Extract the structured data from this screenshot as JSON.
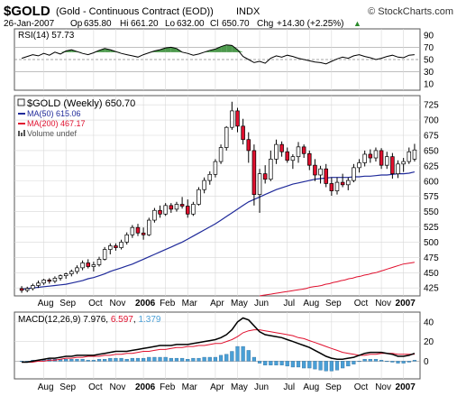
{
  "header": {
    "symbol": "$GOLD",
    "name": "(Gold - Continuous Contract (EOD))",
    "exchange": "INDX",
    "copyright": "© StockCharts.com",
    "date": "26-Jan-2007",
    "quote": {
      "op_label": "Op",
      "op": "635.80",
      "hi_label": "Hi",
      "hi": "661.20",
      "lo_label": "Lo",
      "lo": "632.00",
      "cl_label": "Cl",
      "cl": "650.70",
      "chg_label": "Chg",
      "chg": "+14.30 (+2.25%)"
    },
    "up_arrow": "▲"
  },
  "colors": {
    "up_candle": "#ffffff",
    "down_candle": "#e0102e",
    "candle_outline": "#000000",
    "ma50": "#1f2a9a",
    "ma200": "#e0102e",
    "macd_line": "#000000",
    "signal_line": "#e0102e",
    "histogram": "#4a9fd6",
    "rsi_fill": "#4d9a4d",
    "grid": "#d8d8d8",
    "panel_border": "#555555"
  },
  "chart_data": [
    {
      "type": "line",
      "panel": "rsi",
      "label": "RSI(14)",
      "label_value": "57.73",
      "y_ticks": [
        "90",
        "70",
        "50",
        "30",
        "10"
      ],
      "ylim": [
        0,
        100
      ],
      "overbought": 70,
      "oversold": 30,
      "values": [
        52,
        55,
        58,
        56,
        60,
        57,
        62,
        59,
        64,
        66,
        63,
        60,
        58,
        61,
        65,
        68,
        66,
        63,
        60,
        58,
        56,
        54,
        58,
        61,
        64,
        66,
        69,
        70,
        68,
        62,
        60,
        57,
        59,
        62,
        65,
        67,
        71,
        74,
        73,
        66,
        55,
        50,
        45,
        47,
        44,
        52,
        56,
        54,
        57,
        55,
        52,
        50,
        48,
        46,
        45,
        43,
        47,
        51,
        54,
        52,
        56,
        58,
        55,
        53,
        50,
        52,
        55,
        57,
        54,
        53,
        57,
        58
      ]
    },
    {
      "type": "candlestick",
      "panel": "price",
      "title": "$GOLD (Weekly) 650.70",
      "legend": [
        {
          "name": "MA(50) 615.06",
          "color": "#1f2a9a"
        },
        {
          "name": "MA(200) 467.17",
          "color": "#e0102e"
        },
        {
          "name": "Volume undef",
          "color": "#555555"
        }
      ],
      "x_tick_labels": [
        "Aug",
        "Sep",
        "Oct",
        "Nov",
        "2006",
        "Feb",
        "Mar",
        "Apr",
        "May",
        "Jun",
        "Jul",
        "Aug",
        "Sep",
        "Oct",
        "Nov",
        "2007"
      ],
      "y_ticks": [
        725,
        700,
        675,
        650,
        625,
        600,
        575,
        550,
        525,
        500,
        475,
        450,
        425
      ],
      "ylim": [
        412,
        740
      ],
      "ohlc": [
        [
          424,
          428,
          417,
          421
        ],
        [
          421,
          427,
          418,
          424
        ],
        [
          424,
          432,
          421,
          429
        ],
        [
          429,
          437,
          425,
          433
        ],
        [
          433,
          440,
          430,
          438
        ],
        [
          438,
          441,
          432,
          436
        ],
        [
          436,
          444,
          433,
          441
        ],
        [
          441,
          447,
          437,
          445
        ],
        [
          445,
          450,
          440,
          448
        ],
        [
          448,
          455,
          444,
          452
        ],
        [
          452,
          462,
          448,
          458
        ],
        [
          458,
          470,
          454,
          466
        ],
        [
          466,
          472,
          457,
          460
        ],
        [
          460,
          468,
          452,
          463
        ],
        [
          463,
          476,
          460,
          472
        ],
        [
          472,
          492,
          470,
          488
        ],
        [
          488,
          498,
          480,
          494
        ],
        [
          494,
          498,
          486,
          491
        ],
        [
          491,
          504,
          488,
          500
        ],
        [
          500,
          516,
          496,
          512
        ],
        [
          512,
          528,
          507,
          524
        ],
        [
          524,
          530,
          510,
          515
        ],
        [
          515,
          524,
          504,
          512
        ],
        [
          512,
          540,
          510,
          536
        ],
        [
          536,
          556,
          532,
          552
        ],
        [
          552,
          560,
          540,
          546
        ],
        [
          546,
          564,
          543,
          560
        ],
        [
          560,
          564,
          548,
          554
        ],
        [
          554,
          566,
          550,
          562
        ],
        [
          562,
          574,
          555,
          559
        ],
        [
          559,
          570,
          540,
          546
        ],
        [
          546,
          566,
          543,
          562
        ],
        [
          562,
          590,
          560,
          586
        ],
        [
          586,
          606,
          580,
          601
        ],
        [
          601,
          616,
          594,
          611
        ],
        [
          611,
          636,
          606,
          632
        ],
        [
          632,
          660,
          628,
          655
        ],
        [
          655,
          690,
          650,
          688
        ],
        [
          688,
          730,
          684,
          715
        ],
        [
          715,
          720,
          680,
          690
        ],
        [
          690,
          702,
          660,
          668
        ],
        [
          668,
          680,
          630,
          650
        ],
        [
          650,
          660,
          560,
          578
        ],
        [
          578,
          620,
          548,
          612
        ],
        [
          612,
          626,
          596,
          603
        ],
        [
          603,
          650,
          600,
          636
        ],
        [
          636,
          668,
          628,
          660
        ],
        [
          660,
          665,
          640,
          648
        ],
        [
          648,
          655,
          630,
          634
        ],
        [
          634,
          644,
          620,
          640
        ],
        [
          640,
          664,
          630,
          656
        ],
        [
          656,
          660,
          638,
          645
        ],
        [
          645,
          650,
          618,
          626
        ],
        [
          626,
          636,
          600,
          610
        ],
        [
          610,
          625,
          596,
          620
        ],
        [
          620,
          628,
          590,
          596
        ],
        [
          596,
          606,
          576,
          584
        ],
        [
          584,
          606,
          578,
          598
        ],
        [
          598,
          612,
          590,
          594
        ],
        [
          594,
          606,
          585,
          601
        ],
        [
          601,
          628,
          598,
          622
        ],
        [
          622,
          636,
          614,
          630
        ],
        [
          630,
          650,
          624,
          644
        ],
        [
          644,
          652,
          630,
          638
        ],
        [
          638,
          655,
          632,
          650
        ],
        [
          650,
          654,
          620,
          626
        ],
        [
          626,
          648,
          620,
          640
        ],
        [
          640,
          646,
          604,
          612
        ],
        [
          612,
          634,
          605,
          628
        ],
        [
          628,
          638,
          615,
          632
        ],
        [
          632,
          655,
          628,
          648
        ],
        [
          636,
          661,
          632,
          651
        ]
      ],
      "ma50": [
        423,
        424,
        425,
        426,
        427,
        428,
        429,
        430,
        431,
        433,
        435,
        437,
        440,
        442,
        445,
        448,
        452,
        455,
        458,
        461,
        464,
        468,
        472,
        476,
        480,
        484,
        488,
        492,
        496,
        500,
        505,
        510,
        515,
        520,
        525,
        530,
        536,
        542,
        548,
        554,
        560,
        566,
        570,
        574,
        578,
        582,
        586,
        589,
        592,
        595,
        597,
        599,
        601,
        603,
        604,
        605,
        606,
        606,
        606,
        606,
        607,
        607,
        608,
        608,
        609,
        610,
        610,
        611,
        612,
        612,
        613,
        615
      ],
      "ma200_x_start": 43,
      "ma200": [
        412,
        413,
        414,
        415,
        416,
        417,
        418,
        419,
        420,
        421,
        422,
        423,
        424,
        426,
        427,
        428,
        429,
        431,
        432,
        434,
        435,
        437,
        438,
        440,
        441,
        443,
        444,
        446,
        447,
        449,
        450,
        452,
        454,
        456,
        458,
        460,
        462,
        464,
        465,
        466,
        467
      ]
    },
    {
      "type": "line",
      "panel": "macd",
      "label": "MACD(12,26,9)",
      "macd_value": "7.976",
      "signal_value": "6.597",
      "hist_value": "1.379",
      "y_ticks": [
        "40",
        "20",
        "0"
      ],
      "ylim": [
        -18,
        50
      ],
      "macd": [
        -1,
        -1,
        0,
        1,
        2,
        3,
        3,
        4,
        5,
        5,
        6,
        6,
        6,
        6,
        7,
        8,
        9,
        10,
        10,
        10,
        11,
        12,
        13,
        14,
        15,
        16,
        16,
        16,
        17,
        17,
        17,
        18,
        19,
        20,
        21,
        22,
        24,
        27,
        32,
        40,
        44,
        42,
        36,
        30,
        27,
        26,
        25,
        24,
        22,
        20,
        18,
        16,
        14,
        11,
        8,
        5,
        3,
        2,
        2,
        3,
        4,
        6,
        8,
        9,
        9,
        9,
        8,
        7,
        5,
        5,
        6,
        8
      ],
      "signal": [
        -1,
        -1,
        -1,
        0,
        0,
        1,
        1,
        2,
        3,
        3,
        4,
        4,
        5,
        5,
        5,
        6,
        6,
        7,
        7,
        8,
        8,
        9,
        10,
        10,
        11,
        12,
        12,
        13,
        14,
        14,
        15,
        15,
        16,
        16,
        17,
        18,
        18,
        20,
        22,
        25,
        29,
        31,
        32,
        32,
        31,
        30,
        29,
        28,
        27,
        26,
        24,
        23,
        21,
        19,
        17,
        15,
        13,
        11,
        9,
        8,
        7,
        6,
        6,
        7,
        7,
        8,
        8,
        8,
        7,
        7,
        7,
        7
      ],
      "histogram": [
        0,
        0,
        1,
        1,
        2,
        2,
        2,
        2,
        2,
        2,
        2,
        2,
        1,
        1,
        2,
        2,
        3,
        3,
        3,
        2,
        3,
        3,
        3,
        4,
        4,
        4,
        4,
        3,
        3,
        3,
        2,
        3,
        3,
        4,
        4,
        4,
        6,
        7,
        10,
        15,
        15,
        11,
        4,
        -2,
        -4,
        -4,
        -4,
        -4,
        -5,
        -6,
        -6,
        -7,
        -7,
        -8,
        -9,
        -10,
        -10,
        -9,
        -7,
        -5,
        -3,
        0,
        2,
        2,
        2,
        1,
        0,
        -1,
        -2,
        -2,
        -1,
        1
      ],
      "x_tick_labels": [
        "Aug",
        "Sep",
        "Oct",
        "Nov",
        "2006",
        "Feb",
        "Mar",
        "Apr",
        "May",
        "Jun",
        "Jul",
        "Aug",
        "Sep",
        "Oct",
        "Nov",
        "2007"
      ]
    }
  ]
}
